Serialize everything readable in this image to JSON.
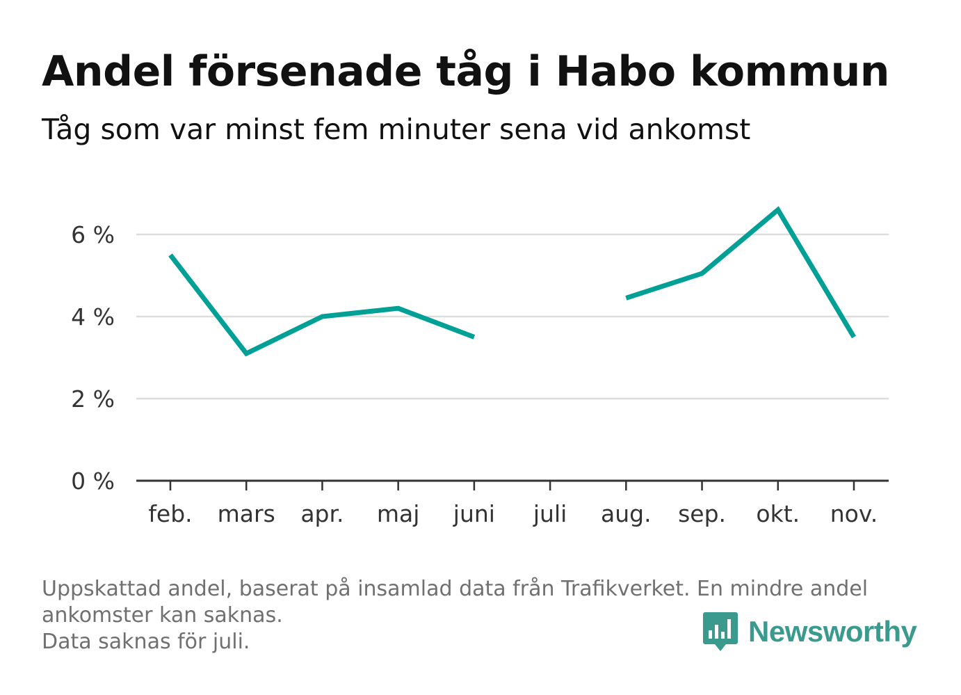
{
  "header": {
    "title": "Andel försenade tåg i Habo kommun",
    "subtitle": "Tåg som var minst fem minuter sena vid ankomst"
  },
  "footnote": {
    "line1": "Uppskattad andel, baserat på insamlad data från Trafikverket. En mindre andel",
    "line2": "ankomster kan saknas.",
    "line3": "Data saknas för juli."
  },
  "brand": {
    "name": "Newsworthy",
    "icon": "bar-chart-speech-bubble-icon",
    "color": "#3a9a8e"
  },
  "chart_data": {
    "type": "line",
    "categories": [
      "feb.",
      "mars",
      "apr.",
      "maj",
      "juni",
      "juli",
      "aug.",
      "sep.",
      "okt.",
      "nov."
    ],
    "series": [
      {
        "values": [
          5.5,
          3.1,
          4.0,
          4.2,
          3.5,
          null,
          4.45,
          5.05,
          6.6,
          3.5
        ],
        "color": "#00a096"
      }
    ],
    "yticks": [
      0,
      2,
      4,
      6
    ],
    "ytick_labels": [
      "0 %",
      "2 %",
      "4 %",
      "6 %"
    ],
    "ylim": [
      0,
      7
    ],
    "grid": true,
    "gridline_color": "#dddddd",
    "axis_color": "#333333"
  }
}
